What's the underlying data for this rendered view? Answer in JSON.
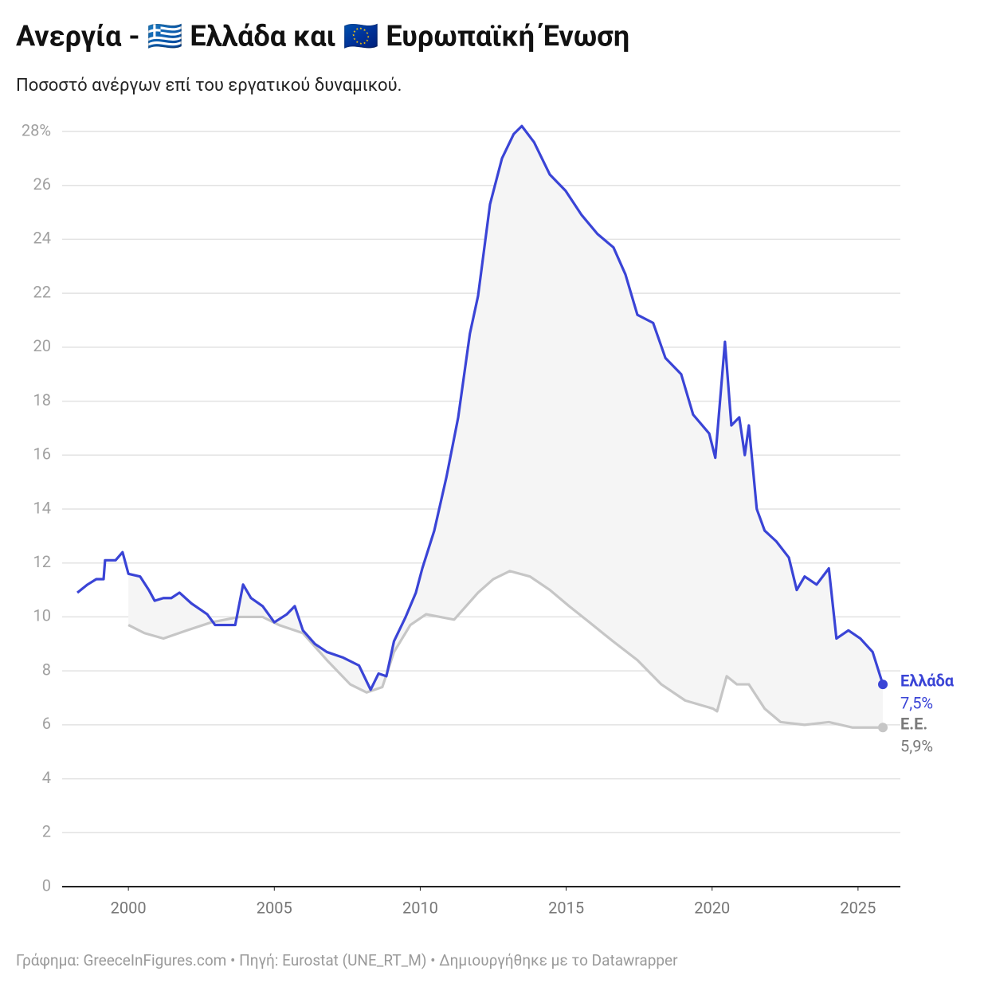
{
  "chart_data": {
    "type": "line",
    "title": "Ανεργία - 🇬🇷 Ελλάδα και 🇪🇺 Ευρωπαϊκή Ένωση",
    "subtitle": "Ποσοστό ανέργων επί του εργατικού δυναμικού.",
    "footer": "Γράφημα: GreeceInFigures.com • Πηγή: Eurostat (UNE_RT_M) • Δημιουργήθηκε με το Datawrapper",
    "xlim": [
      1997.73,
      2026.45
    ],
    "xticks": [
      2000,
      2005,
      2010,
      2015,
      2020,
      2025
    ],
    "ylim": [
      0,
      28
    ],
    "yticks": [
      0,
      2,
      4,
      6,
      8,
      10,
      12,
      14,
      16,
      18,
      20,
      22,
      24,
      26,
      {
        "value": 28,
        "label": "28%"
      }
    ],
    "grid": true,
    "fill_between": true,
    "series": [
      {
        "name": "Ελλάδα",
        "color": "#3a44d6",
        "label_color": "#3a44d6",
        "x": [
          1998.25,
          1998.6,
          1998.9,
          1999.15,
          1999.2,
          1999.56,
          1999.8,
          2000.0,
          2000.4,
          2000.7,
          2000.9,
          2001.2,
          2001.47,
          2001.75,
          2002.16,
          2002.7,
          2002.97,
          2003.66,
          2003.93,
          2004.2,
          2004.6,
          2005.0,
          2005.43,
          2005.7,
          2005.98,
          2006.39,
          2006.8,
          2007.34,
          2007.9,
          2008.3,
          2008.57,
          2008.84,
          2009.1,
          2009.5,
          2009.85,
          2010.07,
          2010.48,
          2010.9,
          2011.3,
          2011.7,
          2011.98,
          2012.39,
          2012.8,
          2013.2,
          2013.48,
          2013.9,
          2014.44,
          2014.98,
          2015.53,
          2016.07,
          2016.62,
          2017.03,
          2017.44,
          2017.98,
          2018.4,
          2018.94,
          2019.35,
          2019.9,
          2020.11,
          2020.44,
          2020.66,
          2020.93,
          2021.12,
          2021.26,
          2021.53,
          2021.8,
          2022.2,
          2022.63,
          2022.9,
          2023.17,
          2023.58,
          2024.0,
          2024.26,
          2024.67,
          2025.08,
          2025.5,
          2025.85
        ],
        "values": [
          10.9,
          11.2,
          11.4,
          11.4,
          12.1,
          12.1,
          12.4,
          11.6,
          11.5,
          11.0,
          10.6,
          10.7,
          10.7,
          10.9,
          10.5,
          10.1,
          9.7,
          9.7,
          11.2,
          10.7,
          10.4,
          9.8,
          10.1,
          10.4,
          9.5,
          9.0,
          8.7,
          8.5,
          8.2,
          7.3,
          7.9,
          7.8,
          9.1,
          10.0,
          10.9,
          11.8,
          13.2,
          15.2,
          17.4,
          20.5,
          21.9,
          25.3,
          27.0,
          27.9,
          28.2,
          27.6,
          26.4,
          25.8,
          24.9,
          24.2,
          23.7,
          22.7,
          21.2,
          20.9,
          19.6,
          19.0,
          17.5,
          16.8,
          15.9,
          20.2,
          17.1,
          17.4,
          16.0,
          17.1,
          14.0,
          13.2,
          12.8,
          12.2,
          11.0,
          11.5,
          11.2,
          11.8,
          9.2,
          9.5,
          9.2,
          8.7,
          7.5
        ],
        "value_labels": [
          null,
          null,
          null,
          null,
          null,
          null,
          null,
          null,
          null,
          null,
          null,
          null,
          null,
          null,
          null,
          null,
          null,
          null,
          null,
          null,
          null,
          null,
          null,
          null,
          null,
          null,
          null,
          null,
          null,
          null,
          null,
          null,
          null,
          null,
          null,
          null,
          null,
          null,
          null,
          null,
          null,
          null,
          null,
          null,
          null,
          null,
          null,
          null,
          null,
          null,
          null,
          null,
          null,
          null,
          null,
          null,
          null,
          null,
          null,
          null,
          null,
          null,
          null,
          null,
          null,
          null,
          null,
          null,
          null,
          null,
          null,
          null,
          null,
          null,
          null,
          null,
          "7,5%"
        ]
      },
      {
        "name": "Ε.Ε.",
        "color": "#c6c6c6",
        "label_color": "#7a7a7a",
        "x": [
          2000.0,
          2000.55,
          2001.2,
          2002.0,
          2002.84,
          2003.8,
          2004.6,
          2005.16,
          2005.98,
          2006.8,
          2007.6,
          2008.16,
          2008.7,
          2009.1,
          2009.66,
          2010.2,
          2011.16,
          2011.98,
          2012.5,
          2013.07,
          2013.76,
          2014.44,
          2015.1,
          2015.8,
          2016.6,
          2017.44,
          2018.26,
          2019.08,
          2020.03,
          2020.17,
          2020.5,
          2020.85,
          2021.26,
          2021.8,
          2022.35,
          2023.17,
          2024.0,
          2024.8,
          2025.85
        ],
        "values": [
          9.7,
          9.4,
          9.2,
          9.5,
          9.8,
          10.0,
          10.0,
          9.7,
          9.4,
          8.4,
          7.5,
          7.2,
          7.4,
          8.7,
          9.7,
          10.1,
          9.9,
          10.9,
          11.4,
          11.7,
          11.5,
          11.0,
          10.4,
          9.8,
          9.1,
          8.4,
          7.5,
          6.9,
          6.6,
          6.5,
          7.8,
          7.5,
          7.5,
          6.6,
          6.1,
          6.0,
          6.1,
          5.9,
          5.9
        ],
        "value_labels": [
          null,
          null,
          null,
          null,
          null,
          null,
          null,
          null,
          null,
          null,
          null,
          null,
          null,
          null,
          null,
          null,
          null,
          null,
          null,
          null,
          null,
          null,
          null,
          null,
          null,
          null,
          null,
          null,
          null,
          null,
          null,
          null,
          null,
          null,
          null,
          null,
          null,
          null,
          "5,9%"
        ]
      }
    ]
  }
}
